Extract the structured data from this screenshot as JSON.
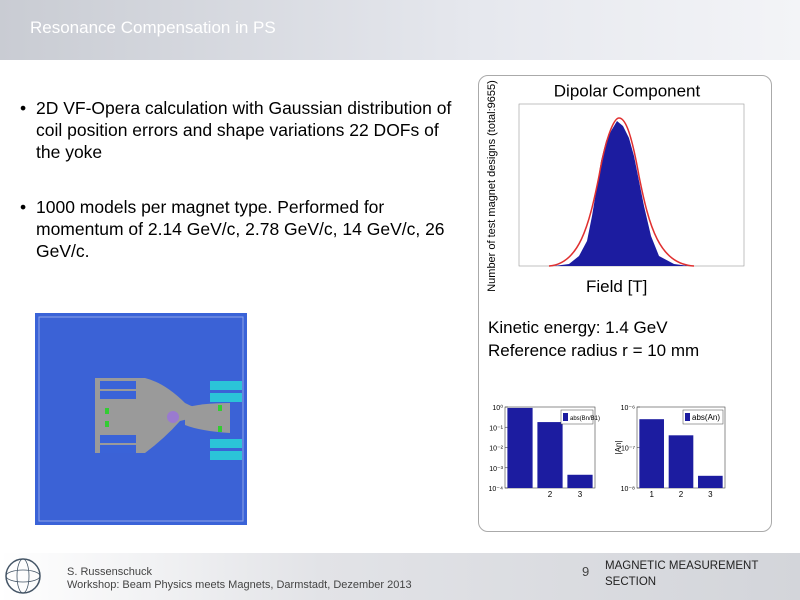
{
  "header": {
    "title": "Resonance Compensation in PS"
  },
  "bullets": [
    "2D VF-Opera calculation with Gaussian distribution of coil position errors and shape variations 22 DOFs of the yoke",
    "1000 models per magnet type. Performed for momentum of 2.14 GeV/c, 2.78 GeV/c, 14 GeV/c, 26 GeV/c."
  ],
  "figure": {
    "title": "Dipolar Component",
    "y_label": "Number of test magnet designs (total:9655)",
    "x_label": "Field [T]"
  },
  "notes": [
    "Kinetic energy: 1.4 GeV",
    "Reference radius r = 10 mm"
  ],
  "charts": [
    {
      "type": "bar",
      "log_scale": true,
      "color": "#1c1ca0",
      "categories": [
        null,
        "2",
        "3"
      ],
      "series": [
        {
          "name": "abs(Bn/B1)",
          "color": "#1c1ca0",
          "values": [
            0.9,
            0.18,
            0.00045
          ]
        }
      ],
      "ylim": [
        0.0001,
        1
      ],
      "yticks": [
        {
          "value": 1,
          "label": "10⁰"
        },
        {
          "value": 0.1,
          "label": "10⁻¹"
        },
        {
          "value": 0.01,
          "label": "10⁻²"
        },
        {
          "value": 0.001,
          "label": "10⁻³"
        },
        {
          "value": 0.0001,
          "label": "10⁻⁴"
        }
      ]
    },
    {
      "type": "bar",
      "log_scale": true,
      "color": "#1c1ca0",
      "categories": [
        "1",
        "2",
        "3"
      ],
      "y_label": "|An|",
      "series": [
        {
          "name": "abs(An)",
          "color": "#1c1ca0",
          "values": [
            5e-07,
            2e-07,
            2e-08
          ]
        }
      ],
      "ylim": [
        1e-08,
        1e-06
      ],
      "yticks": [
        {
          "value": 1e-06,
          "label": "10⁻⁶"
        },
        {
          "value": 1e-07,
          "label": "10⁻⁷"
        },
        {
          "value": 1e-08,
          "label": "10⁻⁸"
        }
      ]
    }
  ],
  "footer": {
    "author": "S. Russenschuck",
    "event": "Workshop: Beam Physics meets Magnets, Darmstadt, Dezember 2013",
    "page": 9,
    "section": [
      "MAGNETIC MEASUREMENT",
      "SECTION"
    ]
  }
}
